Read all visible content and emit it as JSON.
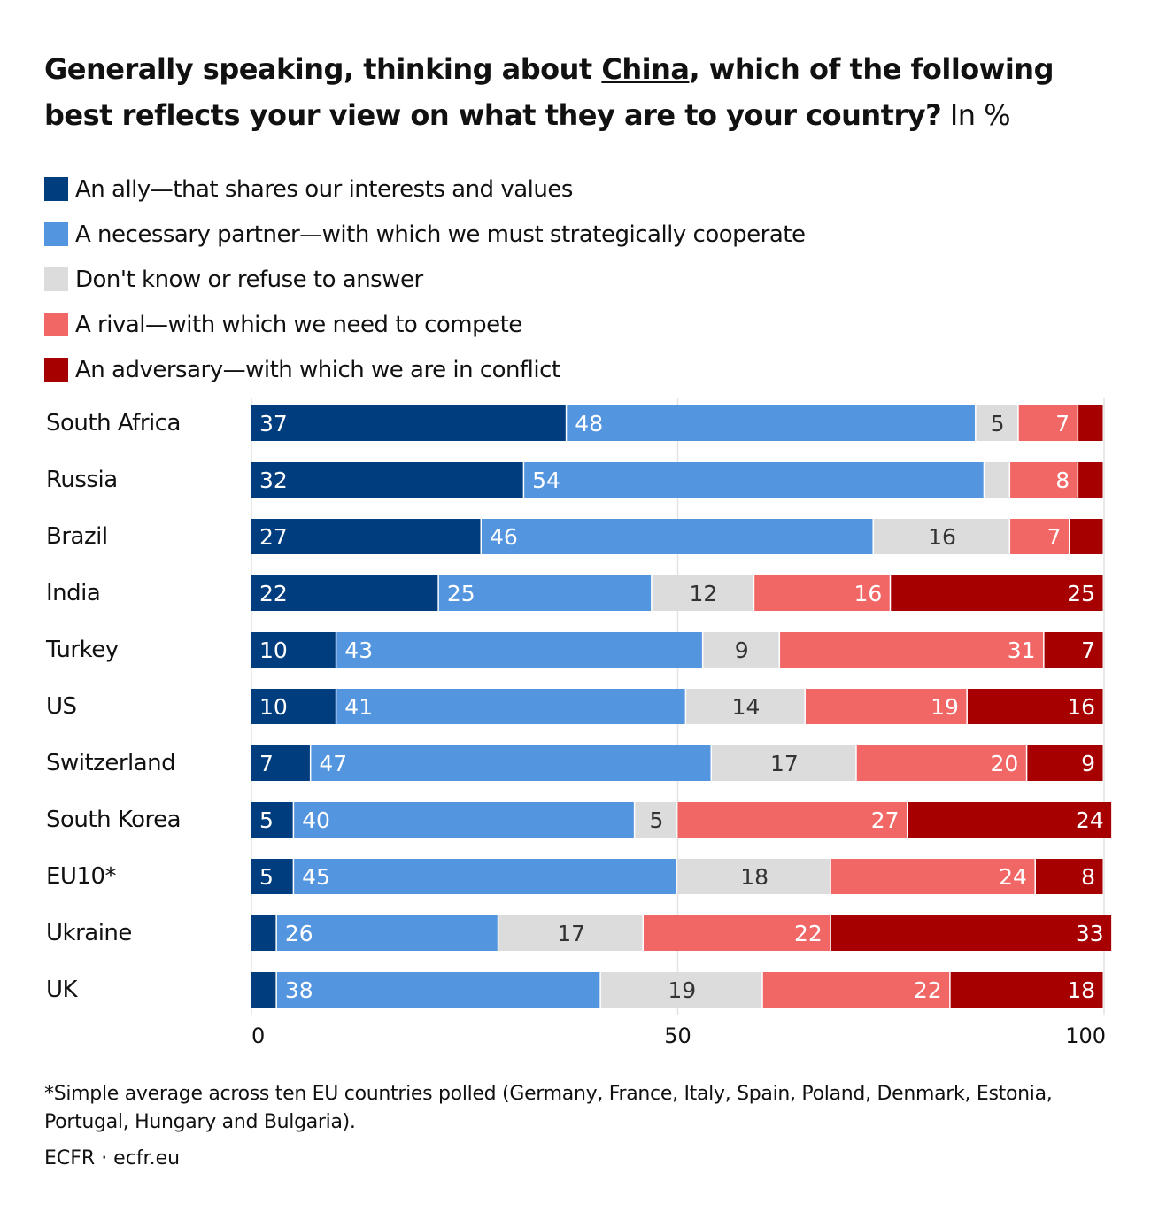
{
  "title": {
    "before": "Generally speaking, thinking about ",
    "underlined": "China",
    "after": ", which of the following best reflects your view on what they are to your country?",
    "unit": " In %"
  },
  "chart_data": {
    "type": "bar",
    "orientation": "horizontal",
    "stacked": true,
    "categories": [
      "South Africa",
      "Russia",
      "Brazil",
      "India",
      "Turkey",
      "US",
      "Switzerland",
      "South Korea",
      "EU10*",
      "Ukraine",
      "UK"
    ],
    "series": [
      {
        "name": "An ally—that shares our interests and values",
        "color": "#003d7f",
        "values": [
          37,
          32,
          27,
          22,
          10,
          10,
          7,
          5,
          5,
          3,
          3
        ]
      },
      {
        "name": "A necessary partner—with which we must strategically cooperate",
        "color": "#5495e0",
        "values": [
          48,
          54,
          46,
          25,
          43,
          41,
          47,
          40,
          45,
          26,
          38
        ]
      },
      {
        "name": "Don't know or refuse to answer",
        "color": "#dcdcdc",
        "values": [
          5,
          3,
          16,
          12,
          9,
          14,
          17,
          5,
          18,
          17,
          19
        ]
      },
      {
        "name": "A rival—with which we need to compete",
        "color": "#f16766",
        "values": [
          7,
          8,
          7,
          16,
          31,
          19,
          20,
          27,
          24,
          22,
          22
        ]
      },
      {
        "name": "An adversary—with which we are in conflict",
        "color": "#a60000",
        "values": [
          3,
          3,
          4,
          25,
          7,
          16,
          9,
          24,
          8,
          33,
          18
        ]
      }
    ],
    "xlim": [
      0,
      100
    ],
    "xticks": [
      0,
      50,
      100
    ],
    "grid": true,
    "legend": "top"
  },
  "footnote": "*Simple average across ten EU countries polled (Germany, France, Italy, Spain, Poland, Denmark, Estonia, Portugal, Hungary and Bulgaria).",
  "source": "ECFR · ecfr.eu"
}
